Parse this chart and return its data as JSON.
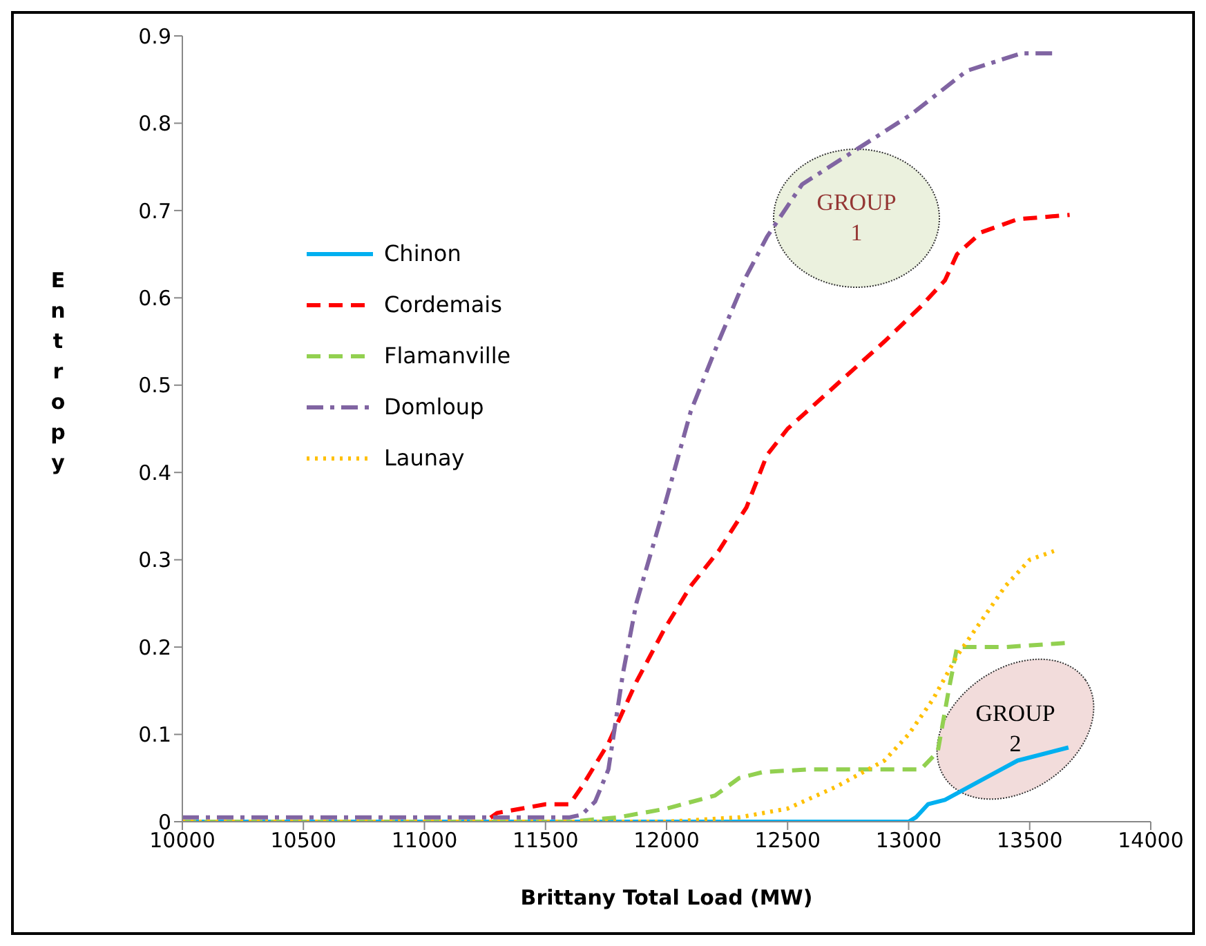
{
  "chart_data": {
    "type": "line",
    "xlabel": "Brittany Total Load (MW)",
    "ylabel": "Entropy",
    "xlim": [
      10000,
      14000
    ],
    "xticks": [
      10000,
      10500,
      11000,
      11500,
      12000,
      12500,
      13000,
      13500,
      14000
    ],
    "ylim": [
      0,
      0.9
    ],
    "yticks": [
      0,
      0.1,
      0.2,
      0.3,
      0.4,
      0.5,
      0.6,
      0.7,
      0.8,
      0.9
    ],
    "grid": false,
    "legend": "left",
    "marker": "none",
    "series": [
      {
        "name": "Chinon",
        "color": "#00b0f0",
        "line_style": "solid",
        "x": [
          10000,
          11000,
          12000,
          12800,
          13000,
          13030,
          13080,
          13150,
          13250,
          13350,
          13450,
          13660
        ],
        "values": [
          0,
          0,
          0,
          0,
          0,
          0.005,
          0.02,
          0.025,
          0.04,
          0.055,
          0.07,
          0.085
        ]
      },
      {
        "name": "Cordemais",
        "color": "#ff0000",
        "line_style": "dashed",
        "x": [
          10000,
          11000,
          11250,
          11300,
          11500,
          11600,
          11650,
          11760,
          11875,
          11990,
          12100,
          12215,
          12330,
          12415,
          12500,
          12700,
          12900,
          13050,
          13150,
          13200,
          13300,
          13450,
          13665
        ],
        "values": [
          0,
          0,
          0,
          0.01,
          0.02,
          0.02,
          0.04,
          0.09,
          0.16,
          0.22,
          0.27,
          0.31,
          0.36,
          0.42,
          0.45,
          0.5,
          0.55,
          0.59,
          0.62,
          0.65,
          0.675,
          0.69,
          0.695
        ]
      },
      {
        "name": "Flamanville",
        "color": "#92d050",
        "line_style": "dashed",
        "x": [
          10000,
          11000,
          11600,
          11800,
          12000,
          12200,
          12300,
          12400,
          12600,
          12800,
          13050,
          13120,
          13165,
          13200,
          13400,
          13665
        ],
        "values": [
          0,
          0,
          0,
          0.005,
          0.015,
          0.03,
          0.05,
          0.057,
          0.06,
          0.06,
          0.06,
          0.08,
          0.15,
          0.2,
          0.2,
          0.205
        ]
      },
      {
        "name": "Domloup",
        "color": "#8064a2",
        "line_style": "dashdot",
        "x": [
          10000,
          11000,
          11600,
          11650,
          11705,
          11760,
          11820,
          11875,
          11990,
          12100,
          12215,
          12330,
          12415,
          12560,
          12785,
          13010,
          13240,
          13465,
          13610
        ],
        "values": [
          0.005,
          0.005,
          0.005,
          0.008,
          0.023,
          0.06,
          0.17,
          0.25,
          0.36,
          0.47,
          0.55,
          0.625,
          0.67,
          0.73,
          0.77,
          0.81,
          0.86,
          0.88,
          0.88
        ]
      },
      {
        "name": "Launay",
        "color": "#ffc000",
        "line_style": "dotted",
        "x": [
          10000,
          11000,
          12000,
          12300,
          12500,
          12700,
          12900,
          13000,
          13100,
          13200,
          13300,
          13400,
          13500,
          13600
        ],
        "values": [
          0,
          0,
          0,
          0.005,
          0.015,
          0.04,
          0.07,
          0.1,
          0.14,
          0.19,
          0.23,
          0.27,
          0.3,
          0.31
        ]
      }
    ],
    "annotations": [
      "GROUP 1",
      "GROUP 2"
    ]
  }
}
